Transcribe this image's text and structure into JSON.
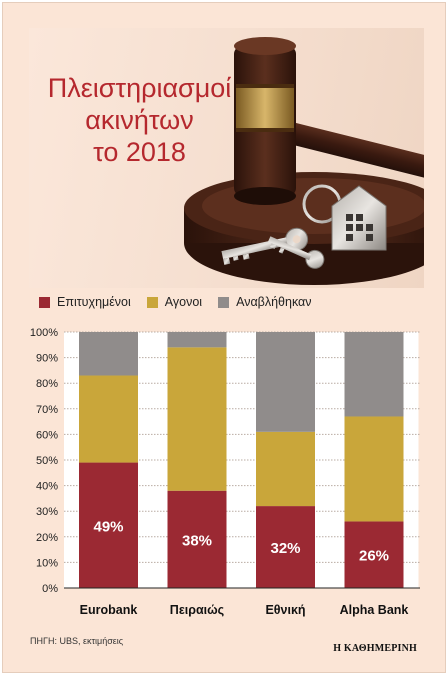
{
  "title_lines": [
    "Πλειστηριασμοί",
    "ακινήτων",
    "το 2018"
  ],
  "source": "ΠΗΓΗ: UBS, εκτιμήσεις",
  "brand": "Η ΚΑΘΗΜΕΡΙΝΗ",
  "colors": {
    "success": "#9b2933",
    "fruitless": "#c9a63a",
    "postponed": "#908c8b",
    "background": "#fbe5d6"
  },
  "chart_data": {
    "type": "bar",
    "stacked": true,
    "categories": [
      "Eurobank",
      "Πειραιώς",
      "Εθνική",
      "Alpha Bank"
    ],
    "series": [
      {
        "name": "Επιτυχημένοι",
        "values": [
          49,
          38,
          32,
          26
        ],
        "labels": [
          "49%",
          "38%",
          "32%",
          "26%"
        ]
      },
      {
        "name": "Αγονοι",
        "values": [
          34,
          56,
          29,
          41
        ]
      },
      {
        "name": "Αναβλήθηκαν",
        "values": [
          17,
          6,
          39,
          33
        ]
      }
    ],
    "ylim": [
      0,
      100
    ],
    "yticks": [
      "0%",
      "10%",
      "20%",
      "30%",
      "40%",
      "50%",
      "60%",
      "70%",
      "80%",
      "90%",
      "100%"
    ],
    "legend_position": "top",
    "grid": "horizontal"
  }
}
